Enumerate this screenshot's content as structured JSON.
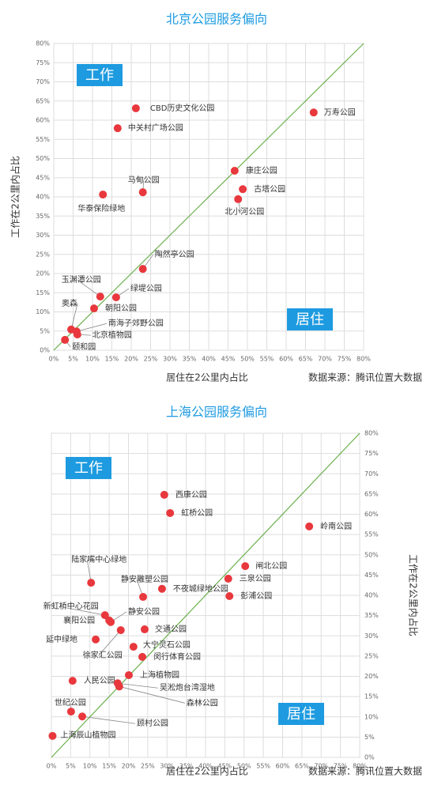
{
  "chart_data": [
    {
      "type": "scatter",
      "title": "北京公园服务偏向",
      "x_label": "居住在2公里内占比",
      "y_label": "工作在2公里内占比",
      "source": "数据来源：腾讯位置大数据",
      "annotations": [
        "工作",
        "居住"
      ],
      "color": "#e8383d",
      "line_color": "#6ab04c",
      "grid": true,
      "y_axis_side": "left",
      "labels": [
        "CBD历史文化公园",
        "中关村广场公园",
        "万寿公园",
        "康庄公园",
        "古塔公园",
        "北小河公园",
        "马甸公园",
        "华泰保险绿地",
        "陶然亭公园",
        "玉渊潭公园",
        "绿堤公园",
        "朝阳公园",
        "奥森",
        "南海子郊野公园",
        "北京植物园",
        "颐和园"
      ],
      "x": [
        21.2,
        16.5,
        67.1,
        46.7,
        48.8,
        47.6,
        23,
        12.7,
        23,
        12,
        16.1,
        10.4,
        4.5,
        5.9,
        6.1,
        2.9
      ],
      "values": [
        63.1,
        57.9,
        62,
        46.8,
        42,
        39.4,
        41.2,
        40.6,
        21.2,
        14,
        13.8,
        10.9,
        5.4,
        4.9,
        4.1,
        2.7
      ],
      "xlim": [
        0,
        80
      ],
      "ylim": [
        0,
        80
      ],
      "xticks": [
        {
          "value": 0,
          "label": "0%"
        },
        {
          "value": 5,
          "label": "5%"
        },
        {
          "value": 10,
          "label": "10%"
        },
        {
          "value": 15,
          "label": "15%"
        },
        {
          "value": 20,
          "label": "20%"
        },
        {
          "value": 25,
          "label": "25%"
        },
        {
          "value": 30,
          "label": "30%"
        },
        {
          "value": 35,
          "label": "35%"
        },
        {
          "value": 40,
          "label": "40%"
        },
        {
          "value": 45,
          "label": "45%"
        },
        {
          "value": 50,
          "label": "50%"
        },
        {
          "value": 55,
          "label": "55%"
        },
        {
          "value": 60,
          "label": "60%"
        },
        {
          "value": 65,
          "label": "65%"
        },
        {
          "value": 70,
          "label": "70%"
        },
        {
          "value": 75,
          "label": "75%"
        },
        {
          "value": 80,
          "label": "80%"
        }
      ],
      "yticks": [
        {
          "value": 0,
          "label": "0%"
        },
        {
          "value": 5,
          "label": "5%"
        },
        {
          "value": 10,
          "label": "10%"
        },
        {
          "value": 15,
          "label": "15%"
        },
        {
          "value": 20,
          "label": "20%"
        },
        {
          "value": 25,
          "label": "25%"
        },
        {
          "value": 30,
          "label": "30%"
        },
        {
          "value": 35,
          "label": "35%"
        },
        {
          "value": 40,
          "label": "40%"
        },
        {
          "value": 45,
          "label": "45%"
        },
        {
          "value": 50,
          "label": "50%"
        },
        {
          "value": 55,
          "label": "55%"
        },
        {
          "value": 60,
          "label": "60%"
        },
        {
          "value": 65,
          "label": "65%"
        },
        {
          "value": 70,
          "label": "70%"
        },
        {
          "value": 75,
          "label": "75%"
        },
        {
          "value": 80,
          "label": "80%"
        }
      ]
    },
    {
      "type": "scatter",
      "title": "上海公园服务偏向",
      "x_label": "居住在2公里内占比",
      "y_label": "工作在2公里内占比",
      "source": "数据来源：腾讯位置大数据",
      "annotations": [
        "工作",
        "居住"
      ],
      "color": "#e8383d",
      "line_color": "#6ab04c",
      "grid": true,
      "y_axis_side": "right",
      "labels": [
        "西康公园",
        "虹桥公园",
        "岭南公园",
        "闸北公园",
        "三泉公园",
        "彭浦公园",
        "陆家嘴中心绿地",
        "不夜城绿地公园",
        "静安雕塑公园",
        "新虹桥中心花园",
        "静安公园",
        "襄阳公园",
        "延中绿地",
        "交通公园",
        "徐家汇公园",
        "大宁灵石公园",
        "闵行体育公园",
        "上海植物园",
        "人民公园",
        "吴淞炮台湾湿地",
        "森林公园",
        "世纪公园",
        "顾村公园",
        "上海辰山植物园"
      ],
      "x": [
        29.3,
        30.8,
        66.9,
        50.3,
        45.9,
        46.2,
        10.3,
        28.7,
        23.8,
        13.9,
        15.4,
        15,
        11.5,
        24.2,
        18,
        21.3,
        23.6,
        20.1,
        5.5,
        17.2,
        17.6,
        5.1,
        8,
        0.3
      ],
      "values": [
        64.8,
        60.3,
        57,
        47.2,
        44.1,
        39.8,
        43.1,
        41.6,
        39.6,
        35.1,
        33.4,
        33.8,
        29.1,
        31.6,
        31.4,
        27.3,
        24.8,
        20.3,
        18.9,
        18.3,
        17.5,
        11.3,
        10.1,
        5.3
      ],
      "xlim": [
        0,
        80
      ],
      "ylim": [
        0,
        80
      ],
      "xticks": [
        {
          "value": 0,
          "label": "0%"
        },
        {
          "value": 5,
          "label": "5%"
        },
        {
          "value": 10,
          "label": "10%"
        },
        {
          "value": 15,
          "label": "15%"
        },
        {
          "value": 20,
          "label": "20%"
        },
        {
          "value": 25,
          "label": "25%"
        },
        {
          "value": 30,
          "label": "30%"
        },
        {
          "value": 35,
          "label": "35%"
        },
        {
          "value": 40,
          "label": "40%"
        },
        {
          "value": 45,
          "label": "45%"
        },
        {
          "value": 50,
          "label": "50%"
        },
        {
          "value": 55,
          "label": "55%"
        },
        {
          "value": 60,
          "label": "60%"
        },
        {
          "value": 65,
          "label": "65%"
        },
        {
          "value": 70,
          "label": "70%"
        },
        {
          "value": 75,
          "label": "75%"
        },
        {
          "value": 80,
          "label": "80%"
        }
      ],
      "yticks": [
        {
          "value": 0,
          "label": "0%"
        },
        {
          "value": 5,
          "label": "5%"
        },
        {
          "value": 10,
          "label": "10%"
        },
        {
          "value": 15,
          "label": "15%"
        },
        {
          "value": 20,
          "label": "20%"
        },
        {
          "value": 25,
          "label": "25%"
        },
        {
          "value": 30,
          "label": "30%"
        },
        {
          "value": 35,
          "label": "35%"
        },
        {
          "value": 40,
          "label": "40%"
        },
        {
          "value": 45,
          "label": "45%"
        },
        {
          "value": 50,
          "label": "50%"
        },
        {
          "value": 55,
          "label": "55%"
        },
        {
          "value": 60,
          "label": "60%"
        },
        {
          "value": 65,
          "label": "65%"
        },
        {
          "value": 70,
          "label": "70%"
        },
        {
          "value": 75,
          "label": "75%"
        },
        {
          "value": 80,
          "label": "80%"
        }
      ]
    }
  ]
}
